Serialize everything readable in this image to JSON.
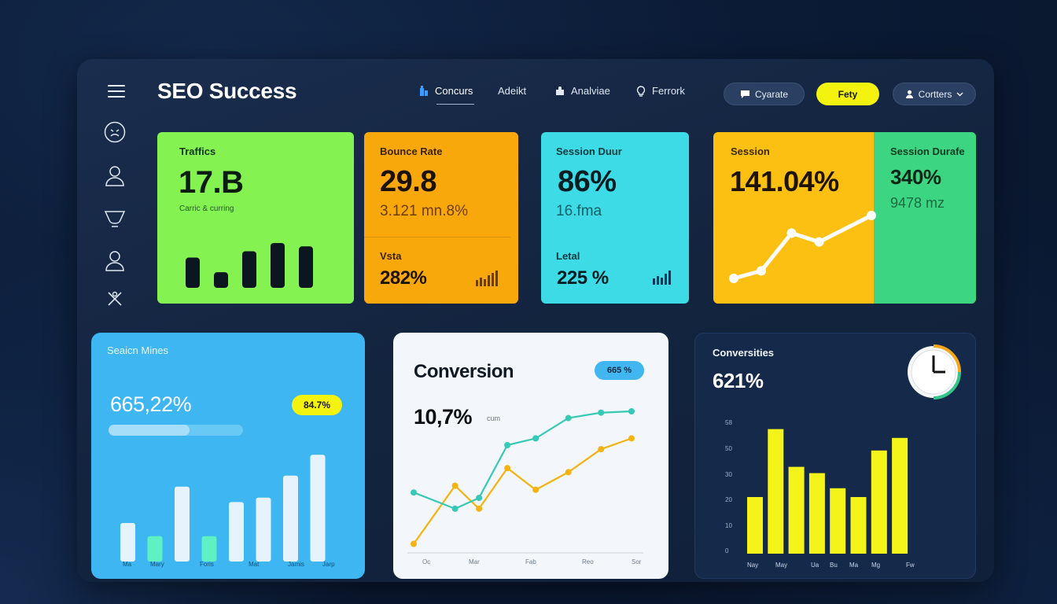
{
  "app": {
    "title": "SEO Success"
  },
  "nav": [
    {
      "label": "Concurs",
      "icon": "building-icon",
      "active": true
    },
    {
      "label": "Adeikt",
      "icon": "",
      "active": false
    },
    {
      "label": "Analviae",
      "icon": "puzzle-icon",
      "active": false
    },
    {
      "label": "Ferrork",
      "icon": "bulb-icon",
      "active": false
    }
  ],
  "buttons": {
    "create": "Cyarate",
    "primary": "Fety",
    "account": "Cortters"
  },
  "sidebar": {
    "icons": [
      "face-icon",
      "user-icon",
      "cup-icon",
      "user-icon",
      "tools-icon"
    ]
  },
  "cards": {
    "traffic": {
      "label": "Traffics",
      "value": "17.B",
      "caption": "Carric & curring",
      "bars": [
        0.62,
        0.32,
        0.75,
        0.92,
        0.85
      ],
      "color": "#84f352"
    },
    "bounce": {
      "label": "Bounce Rate",
      "value": "29.8",
      "sub": "3.121 mn.8%",
      "label2": "Vsta",
      "value2": "282%",
      "color": "#f9a80c"
    },
    "session_dur": {
      "label": "Session Duur",
      "value": "86%",
      "sub": "16.fma",
      "label2": "Letal",
      "value2": "225 %",
      "color": "#3ddbe6"
    },
    "session": {
      "label": "Session",
      "value": "141.04%",
      "line": [
        0.0,
        0.12,
        0.72,
        0.58,
        1.0
      ],
      "color": "#fbc011"
    },
    "session_duration": {
      "label": "Session Durafe",
      "value": "340%",
      "sub": "9478 mz",
      "color": "#3cd582"
    },
    "session_mines": {
      "label": "Seaicn Mines",
      "value": "665,22%",
      "badge": "84.7%",
      "progress": 0.6,
      "bars": [
        0.35,
        0.23,
        0.68,
        0.23,
        0.54,
        0.58,
        0.78,
        0.97
      ],
      "bar_highlight": [
        false,
        true,
        false,
        true,
        false,
        false,
        false,
        false
      ],
      "x_labels": [
        "Ma",
        "Mary",
        "Foris",
        "Mat",
        "Jamis",
        "Jarp"
      ]
    },
    "conversion": {
      "label": "Conversion",
      "value": "10,7%",
      "value_unit": "cum",
      "badge": "665 %",
      "x_labels": [
        "Oc",
        "Mar",
        "Fab",
        "Reo",
        "Sor"
      ],
      "series": [
        {
          "color": "#f5b312",
          "values": [
            0.02,
            0.45,
            0.28,
            0.58,
            0.42,
            0.55,
            0.72,
            0.8
          ]
        },
        {
          "color": "#36c9b5",
          "values": [
            0.4,
            0.28,
            0.36,
            0.75,
            0.8,
            0.95,
            0.99,
            1.0
          ]
        }
      ]
    },
    "conversions_dark": {
      "label": "Conversities",
      "value": "621%",
      "y_ticks": [
        "0",
        "10",
        "20",
        "30",
        "50",
        "58"
      ],
      "bars": [
        0.45,
        0.99,
        0.69,
        0.64,
        0.52,
        0.45,
        0.82,
        0.92
      ],
      "x_labels": [
        "Nay",
        "May",
        "Ua",
        "Bu",
        "Ma",
        "Mg",
        "Fw"
      ],
      "bar_color": "#f4f41a"
    }
  }
}
